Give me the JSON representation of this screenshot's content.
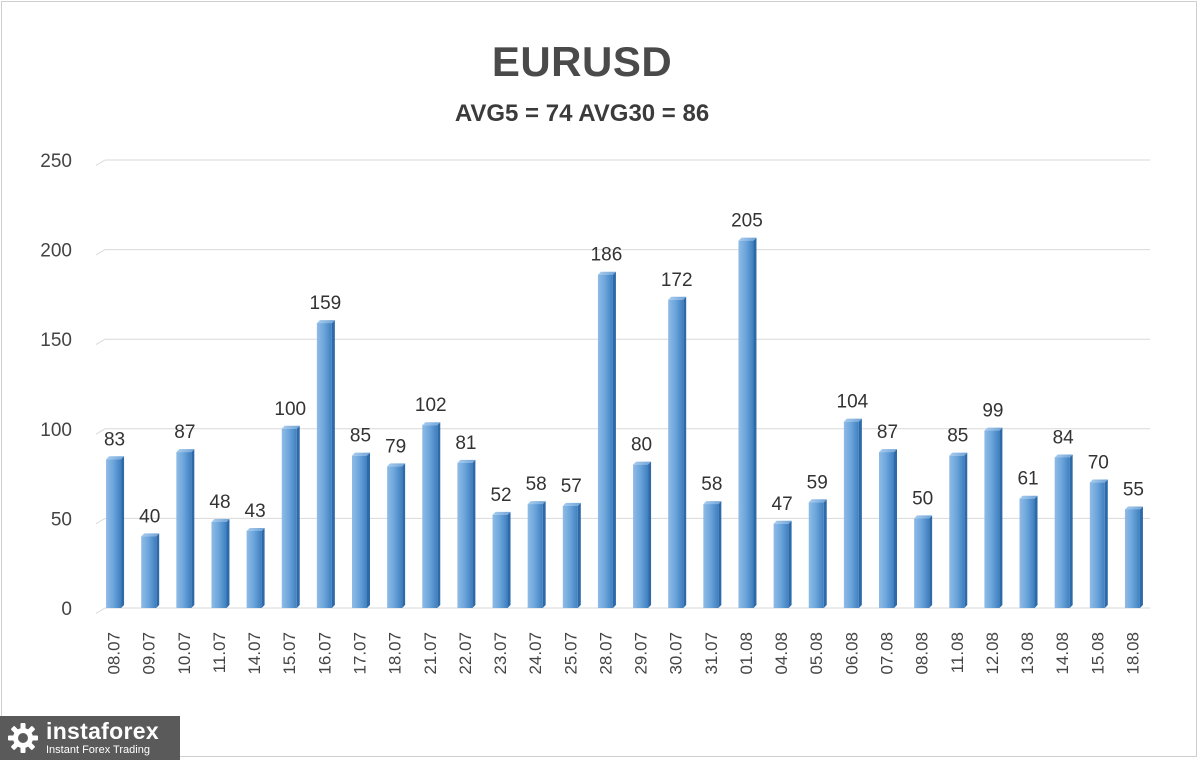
{
  "chart_data": {
    "type": "bar",
    "title": "EURUSD",
    "subtitle": "AVG5 = 74 AVG30 = 86",
    "categories": [
      "08.07",
      "09.07",
      "10.07",
      "11.07",
      "14.07",
      "15.07",
      "16.07",
      "17.07",
      "18.07",
      "21.07",
      "22.07",
      "23.07",
      "24.07",
      "25.07",
      "28.07",
      "29.07",
      "30.07",
      "31.07",
      "01.08",
      "04.08",
      "05.08",
      "06.08",
      "07.08",
      "08.08",
      "11.08",
      "12.08",
      "13.08",
      "14.08",
      "15.08",
      "18.08"
    ],
    "values": [
      83,
      40,
      87,
      48,
      43,
      100,
      159,
      85,
      79,
      102,
      81,
      52,
      58,
      57,
      186,
      80,
      172,
      58,
      205,
      47,
      59,
      104,
      87,
      50,
      85,
      99,
      61,
      84,
      70,
      55
    ],
    "ylim": [
      0,
      250
    ],
    "yticks": [
      0,
      50,
      100,
      150,
      200,
      250
    ],
    "grid": true,
    "bar_color": "#5b9bd5"
  },
  "logo": {
    "name": "instaforex",
    "tagline": "Instant Forex Trading"
  }
}
